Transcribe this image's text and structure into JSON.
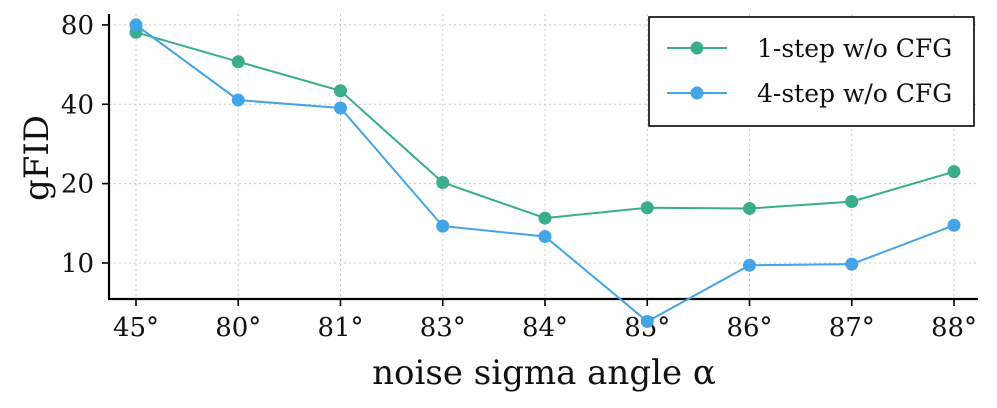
{
  "chart_data": {
    "type": "line",
    "title": "",
    "xlabel": "noise sigma angle α",
    "ylabel": "gFID",
    "y_scale": "log",
    "ylim": [
      7.3,
      88
    ],
    "categories": [
      "45°",
      "80°",
      "81°",
      "83°",
      "84°",
      "85°",
      "86°",
      "87°",
      "88°"
    ],
    "yticks": [
      10,
      20,
      40,
      80
    ],
    "ytick_labels": [
      "10",
      "20",
      "40",
      "80"
    ],
    "grid": true,
    "legend_position": "top-right",
    "series": [
      {
        "name": "1-step w/o CFG",
        "color": "#3aad8c",
        "values": [
          75,
          58,
          45,
          20.2,
          14.8,
          16.2,
          16.1,
          17.1,
          22.2
        ]
      },
      {
        "name": "4-step w/o CFG",
        "color": "#43a4e6",
        "values": [
          80,
          41.5,
          38.7,
          13.8,
          12.6,
          6.0,
          9.8,
          9.9,
          13.9
        ]
      }
    ]
  }
}
